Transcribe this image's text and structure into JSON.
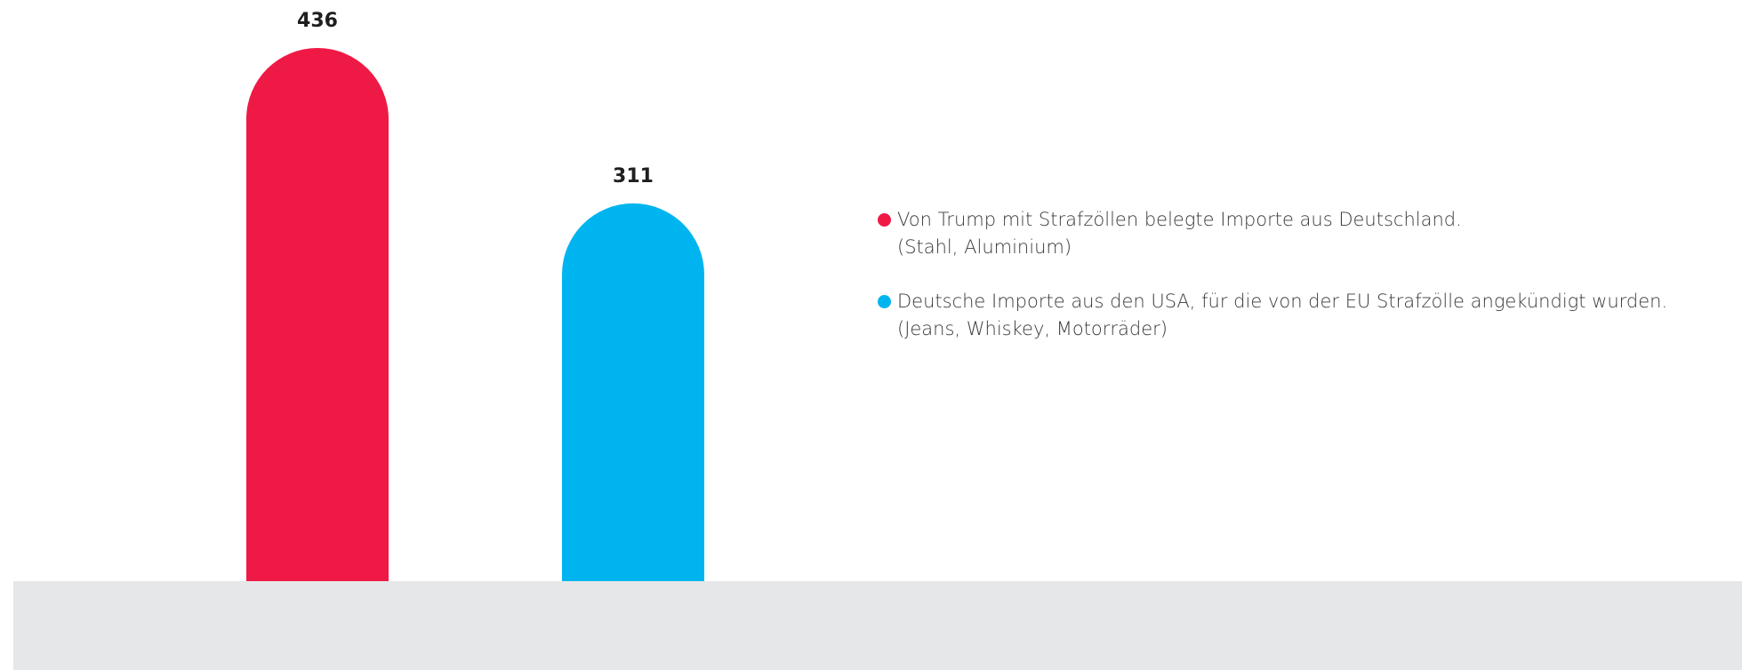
{
  "chart_data": {
    "type": "bar",
    "categories": [
      "",
      ""
    ],
    "values": [
      436,
      311
    ],
    "value_labels": [
      "436",
      "311"
    ],
    "colors": [
      "#ef1946",
      "#00b5ef"
    ],
    "baseline_color": "#e6e7e8",
    "ylim": [
      0,
      436
    ],
    "grid": false,
    "legend_placement": "right",
    "legend": [
      {
        "color": "#ef1946",
        "line1": "Von Trump mit Strafzöllen belegte Importe aus Deutschland.",
        "line2": "(Stahl, Aluminium)"
      },
      {
        "color": "#00b5ef",
        "line1": "Deutsche Importe aus den USA, für die von der EU Strafzölle angekündigt wurden.",
        "line2": "(Jeans, Whiskey, Motorräder)"
      }
    ]
  }
}
